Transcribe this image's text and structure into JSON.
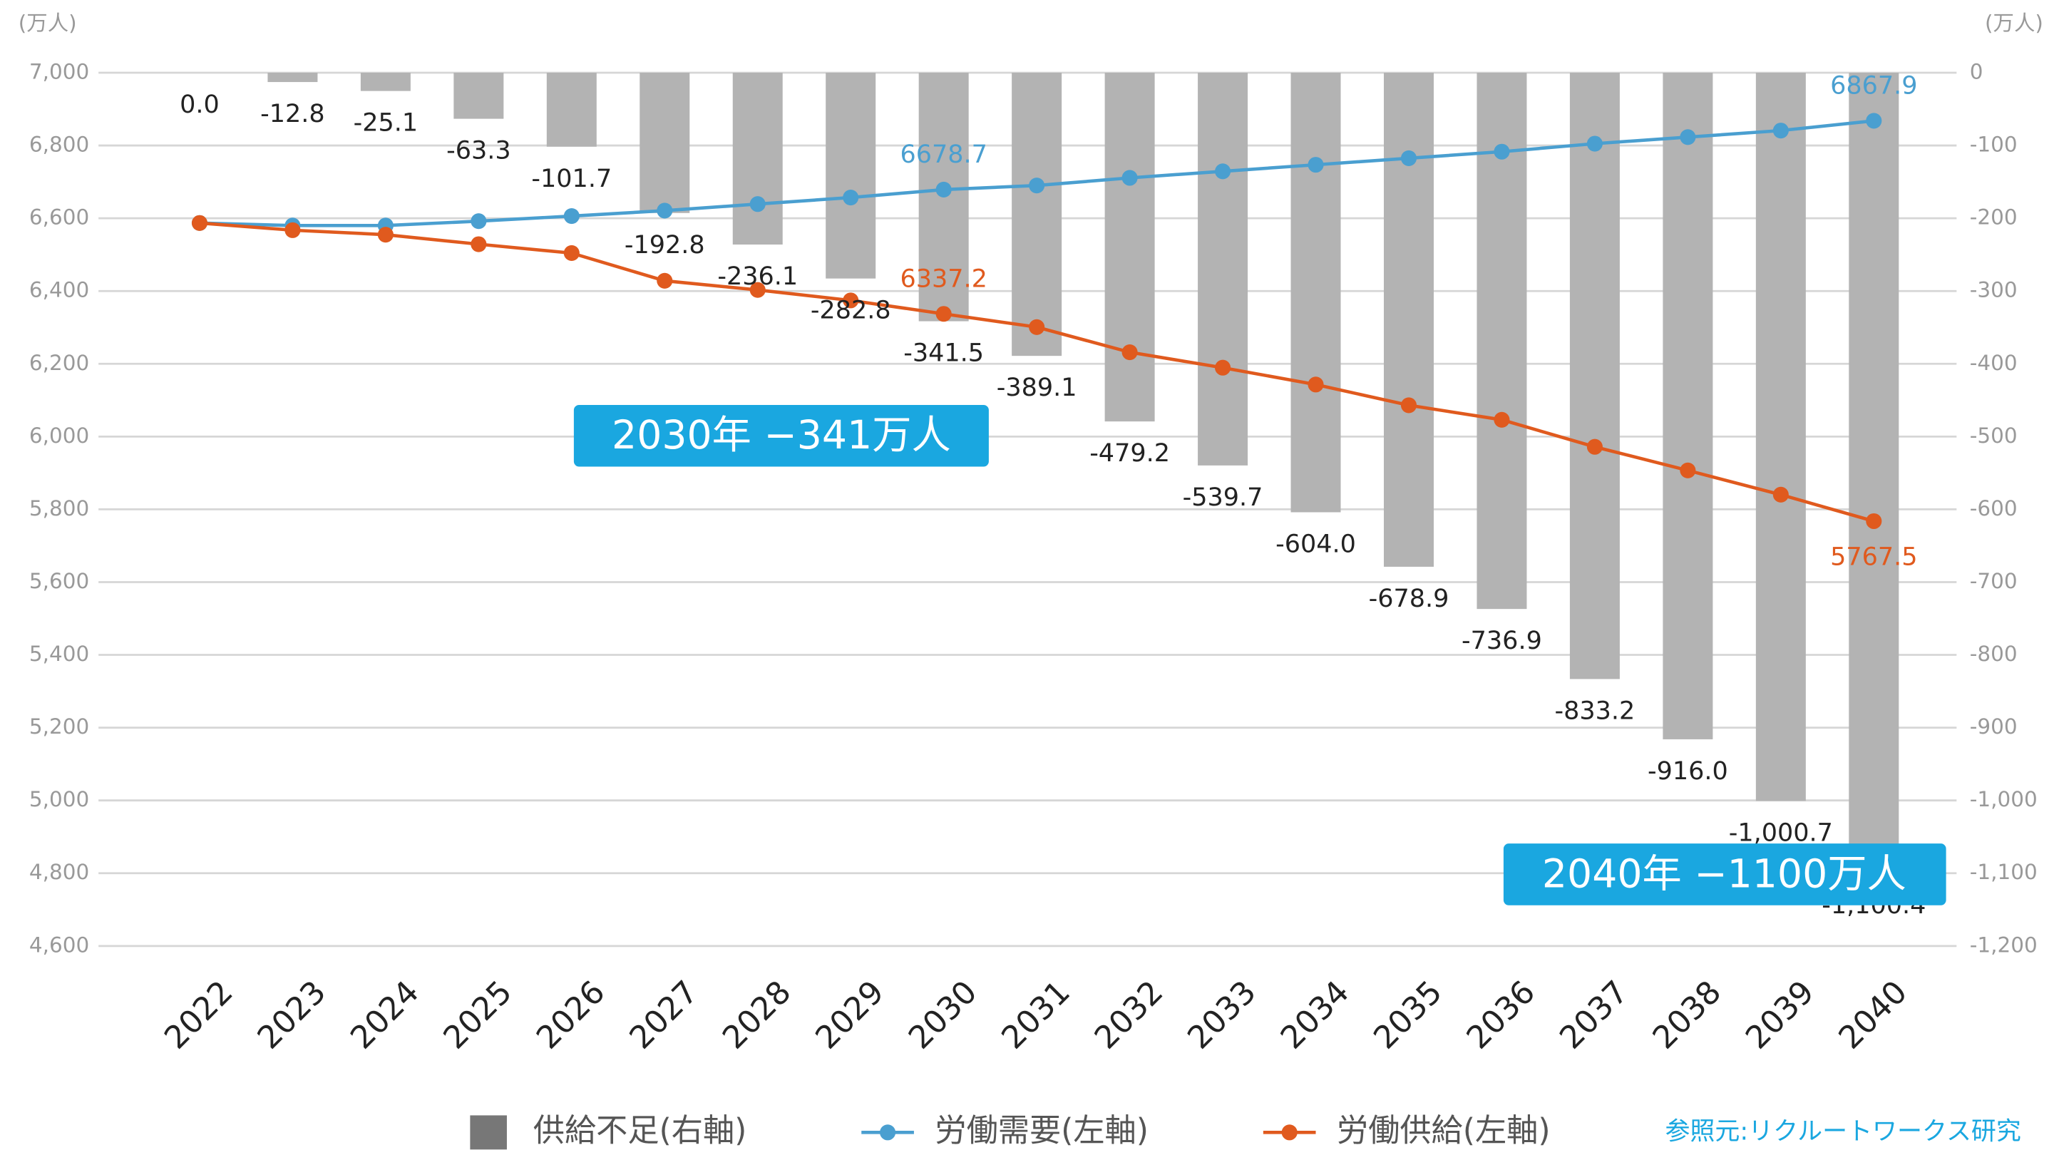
{
  "chart_data": {
    "type": "bar-line",
    "y_unit": "(万人)",
    "y2_unit": "(万人)",
    "categories": [
      "2022",
      "2023",
      "2024",
      "2025",
      "2026",
      "2027",
      "2028",
      "2029",
      "2030",
      "2031",
      "2032",
      "2033",
      "2034",
      "2035",
      "2036",
      "2037",
      "2038",
      "2039",
      "2040"
    ],
    "series": [
      {
        "name": "供給不足(右軸)",
        "type": "bar",
        "axis": "y2",
        "color": "#b3b3b3",
        "values": [
          0.0,
          -12.8,
          -25.1,
          -63.3,
          -101.7,
          -192.8,
          -236.1,
          -282.8,
          -341.5,
          -389.1,
          -479.2,
          -539.7,
          -604.0,
          -678.9,
          -736.9,
          -833.2,
          -916.0,
          -1000.7,
          -1100.4
        ],
        "value_labels": [
          "0.0",
          "-12.8",
          "-25.1",
          "-63.3",
          "-101.7",
          "-192.8",
          "-236.1",
          "-282.8",
          "-341.5",
          "-389.1",
          "-479.2",
          "-539.7",
          "-604.0",
          "-678.9",
          "-736.9",
          "-833.2",
          "-916.0",
          "-1,000.7",
          "-1,100.4"
        ]
      },
      {
        "name": "労働需要(左軸)",
        "type": "line",
        "axis": "y",
        "color": "#4a9fd0",
        "values": [
          6587,
          6580,
          6580,
          6592,
          6606,
          6621,
          6639,
          6657,
          6678.7,
          6690,
          6711,
          6729,
          6747,
          6765,
          6783,
          6805,
          6823,
          6841,
          6867.9
        ],
        "value_labels": [
          null,
          null,
          null,
          null,
          null,
          null,
          null,
          null,
          "6678.7",
          null,
          null,
          null,
          null,
          null,
          null,
          null,
          null,
          null,
          "6867.9"
        ]
      },
      {
        "name": "労働供給(左軸)",
        "type": "line",
        "axis": "y",
        "color": "#e05a1e",
        "values": [
          6587,
          6567.2,
          6554.9,
          6528.7,
          6504.3,
          6428.2,
          6402.9,
          6374.2,
          6337.2,
          6300.9,
          6231.8,
          6189.3,
          6143.0,
          6086.1,
          6046.1,
          5971.8,
          5907.0,
          5840.3,
          5767.5
        ],
        "value_labels": [
          null,
          null,
          null,
          null,
          null,
          null,
          null,
          null,
          "6337.2",
          null,
          null,
          null,
          null,
          null,
          null,
          null,
          null,
          null,
          "5767.5"
        ]
      }
    ],
    "ylim": [
      4600,
      7000
    ],
    "yticks": [
      {
        "value": 4600,
        "label": "4,600"
      },
      {
        "value": 4800,
        "label": "4,800"
      },
      {
        "value": 5000,
        "label": "5,000"
      },
      {
        "value": 5200,
        "label": "5,200"
      },
      {
        "value": 5400,
        "label": "5,400"
      },
      {
        "value": 5600,
        "label": "5,600"
      },
      {
        "value": 5800,
        "label": "5,800"
      },
      {
        "value": 6000,
        "label": "6,000"
      },
      {
        "value": 6200,
        "label": "6,200"
      },
      {
        "value": 6400,
        "label": "6,400"
      },
      {
        "value": 6600,
        "label": "6,600"
      },
      {
        "value": 6800,
        "label": "6,800"
      },
      {
        "value": 7000,
        "label": "7,000"
      }
    ],
    "y2lim": [
      -1200,
      0
    ],
    "y2ticks": [
      {
        "value": -1200,
        "label": "-1,200"
      },
      {
        "value": -1100,
        "label": "-1,100"
      },
      {
        "value": -1000,
        "label": "-1,000"
      },
      -900,
      -800,
      -700,
      -600,
      -500,
      -400,
      -300,
      -200,
      -100,
      0
    ],
    "grid": true,
    "annotations": [
      "2030年 −341万人",
      "2040年 −1100万人"
    ],
    "source": "参照元:リクルートワークス研究"
  }
}
